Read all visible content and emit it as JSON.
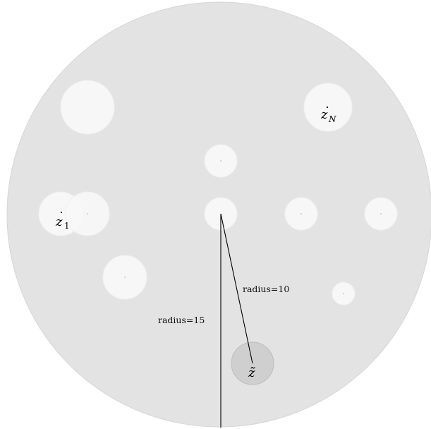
{
  "diagram": {
    "labels": {
      "z1": "z",
      "z1_sub": "1",
      "zN": "z",
      "zN_sub": "N",
      "z_tilde": "z̃",
      "radius_small": "radius=10",
      "radius_large": "radius=15"
    },
    "colors": {
      "big_disk": "#e3e3e3",
      "big_disk_stroke": "#d6d6d6",
      "obstacle": "#f7f7f7",
      "obstacle_stroke": "#efefef",
      "target_disk": "#cfcfcf",
      "target_stroke": "#bdbdbd",
      "line": "#000000",
      "dot": "#bdbdbd"
    }
  }
}
